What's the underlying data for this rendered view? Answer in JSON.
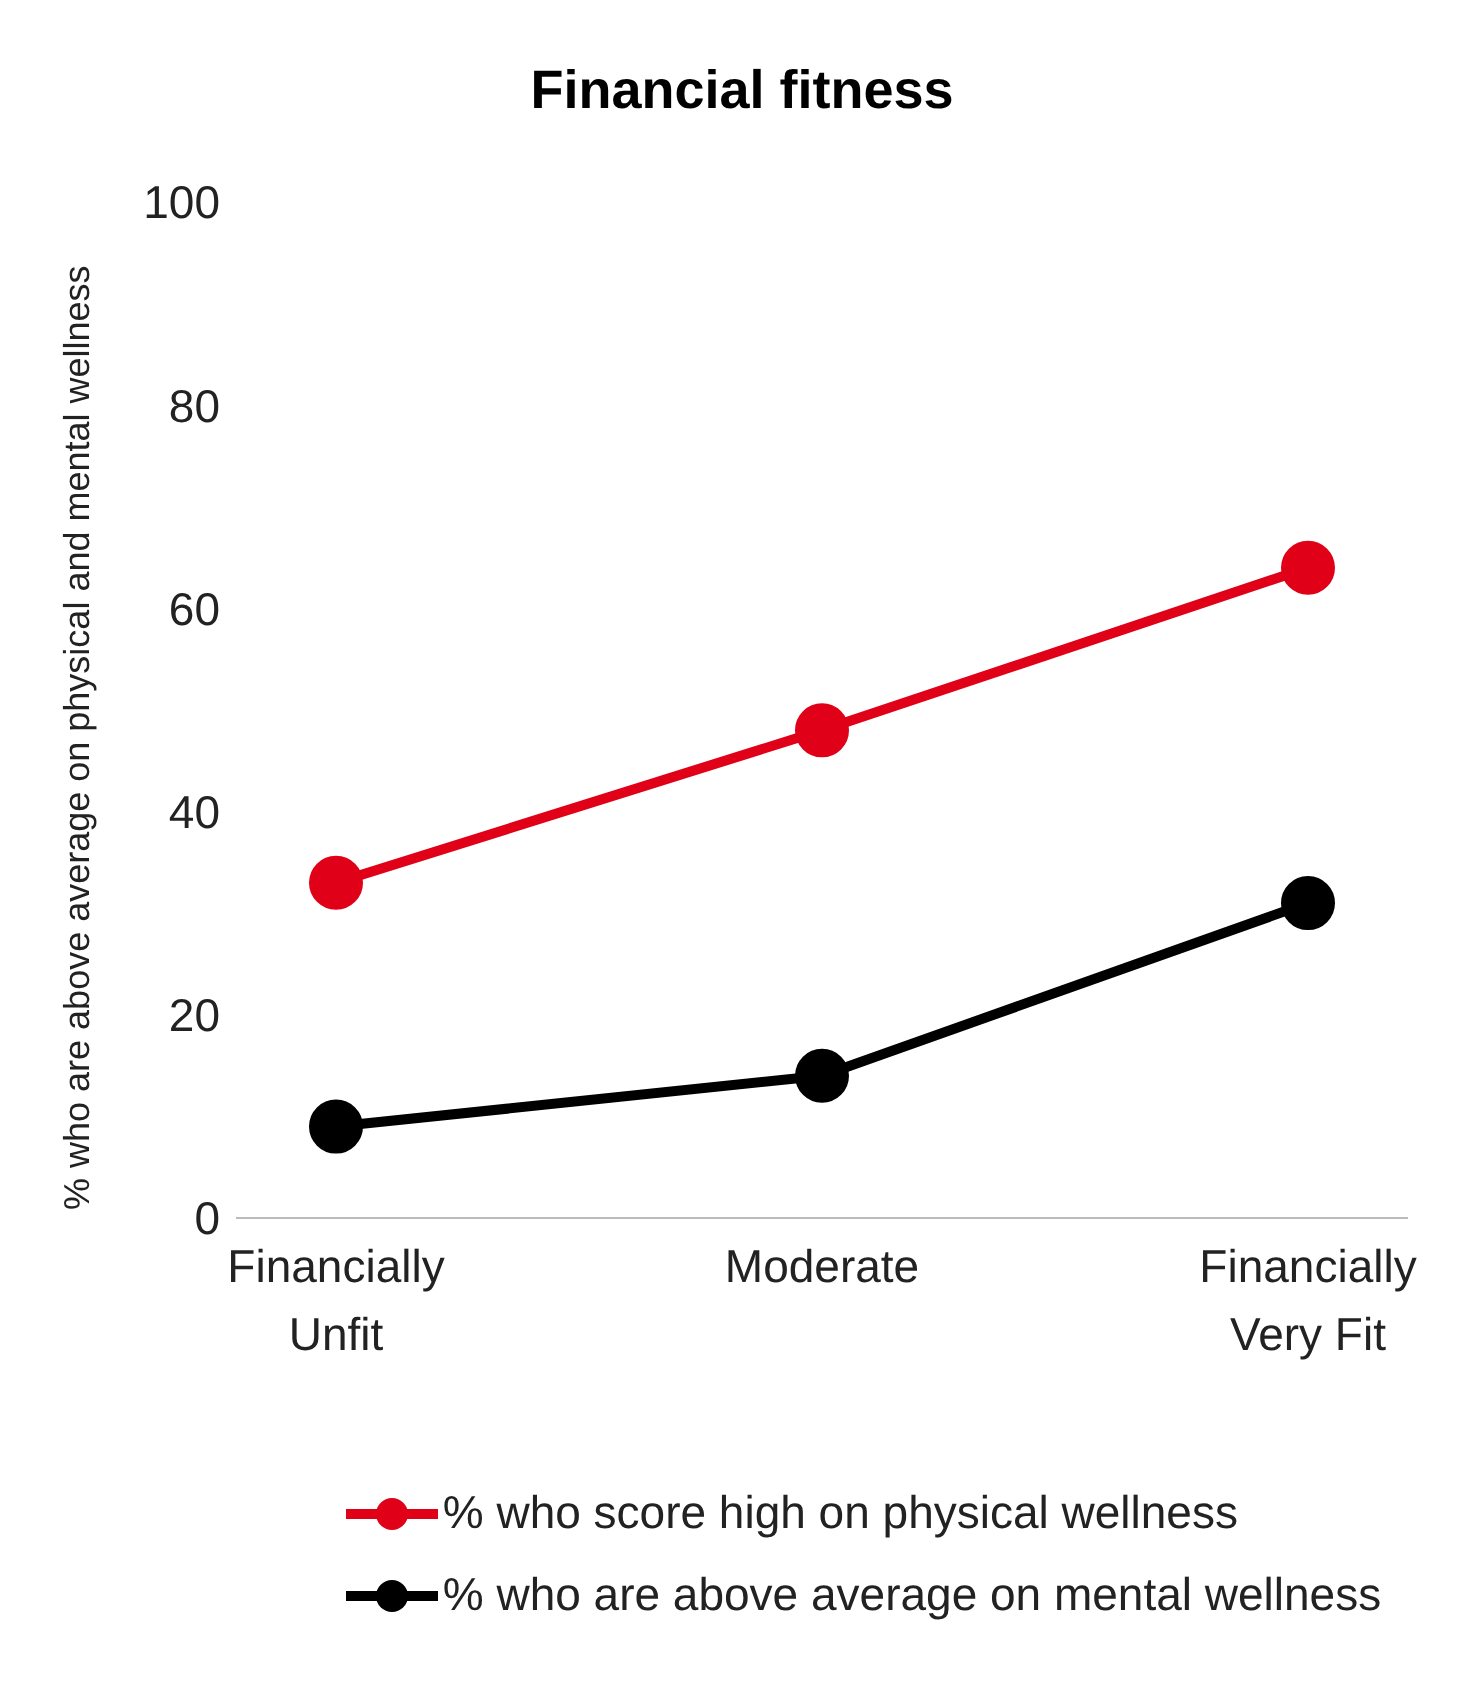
{
  "chart_data": {
    "type": "line",
    "title": "Financial fitness",
    "ylabel": "% who are above average on physical and mental wellness",
    "categories": [
      "Financially\nUnfit",
      "Moderate",
      "Financially\nVery Fit"
    ],
    "series": [
      {
        "name": "% who score high on physical wellness",
        "color": "#e00017",
        "values": [
          33,
          48,
          64
        ]
      },
      {
        "name": "% who are above average on mental wellness",
        "color": "#000000",
        "values": [
          9,
          14,
          31
        ]
      }
    ],
    "ylim": [
      0,
      100
    ],
    "yticks": [
      0,
      20,
      40,
      60,
      80,
      100
    ],
    "grid": false,
    "legend": "bottom",
    "marker": "circle",
    "line_style": "solid"
  }
}
